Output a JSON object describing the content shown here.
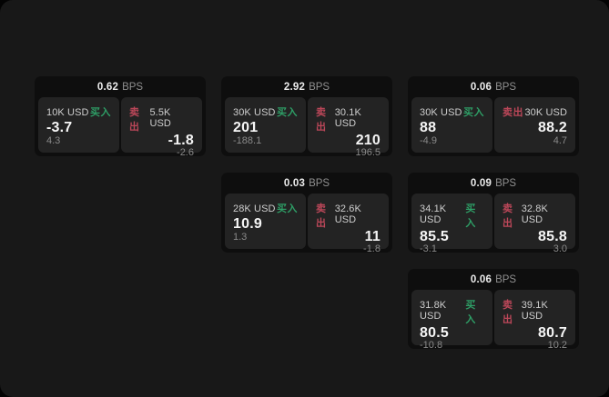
{
  "labels": {
    "bps_unit": "BPS",
    "buy": "买入",
    "sell": "卖出"
  },
  "colors": {
    "buy_green": "#2e9e66",
    "sell_red": "#bc4759",
    "stage_bg": "#181818",
    "card_bg": "#0e0e0e",
    "panel_bg": "#232323"
  },
  "cards": [
    {
      "bps": "0.62",
      "buy": {
        "size": "10K USD",
        "value": "-3.7",
        "sub": "4.3"
      },
      "sell": {
        "size": "5.5K USD",
        "value": "-1.8",
        "sub": "-2.6"
      }
    },
    {
      "bps": "2.92",
      "buy": {
        "size": "30K USD",
        "value": "201",
        "sub": "-188.1"
      },
      "sell": {
        "size": "30.1K USD",
        "value": "210",
        "sub": "196.5"
      }
    },
    {
      "bps": "0.06",
      "buy": {
        "size": "30K USD",
        "value": "88",
        "sub": "-4.9"
      },
      "sell": {
        "size": "30K USD",
        "value": "88.2",
        "sub": "4.7"
      }
    },
    {
      "bps": "0.03",
      "buy": {
        "size": "28K USD",
        "value": "10.9",
        "sub": "1.3"
      },
      "sell": {
        "size": "32.6K USD",
        "value": "11",
        "sub": "-1.8"
      }
    },
    {
      "bps": "0.09",
      "buy": {
        "size": "34.1K USD",
        "value": "85.5",
        "sub": "-3.1"
      },
      "sell": {
        "size": "32.8K USD",
        "value": "85.8",
        "sub": "3.0"
      }
    },
    {
      "bps": "0.06",
      "buy": {
        "size": "31.8K USD",
        "value": "80.5",
        "sub": "-10.8"
      },
      "sell": {
        "size": "39.1K USD",
        "value": "80.7",
        "sub": "10.2"
      }
    }
  ]
}
